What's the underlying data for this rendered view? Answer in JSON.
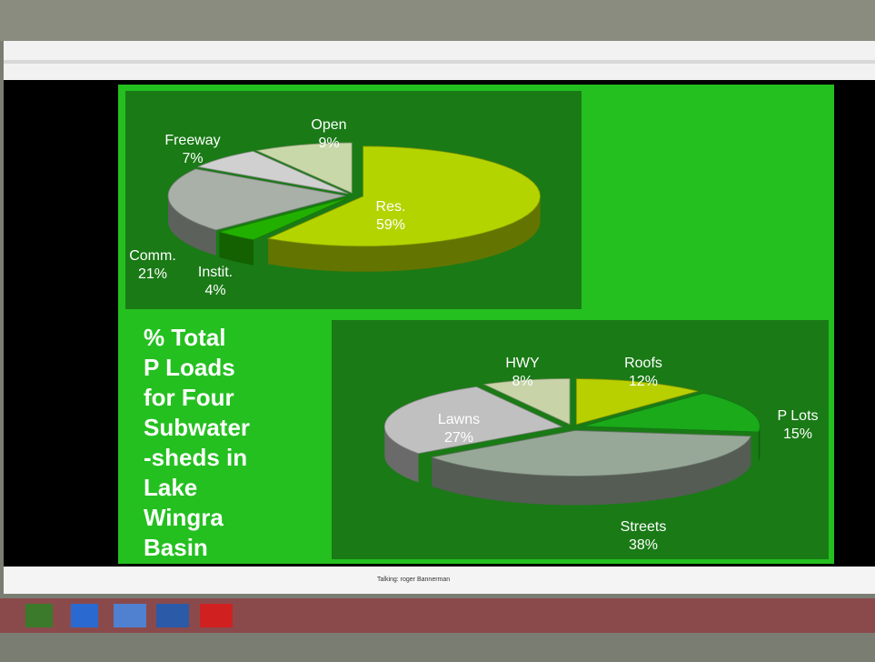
{
  "slide_title_lines": [
    "% Total",
    "P Loads",
    "for Four",
    "Subwater",
    "-sheds in",
    "Lake",
    "Wingra",
    "Basin"
  ],
  "status_text": "Talking: roger Bannerman",
  "chart_data": [
    {
      "type": "pie",
      "categories": [
        "Res.",
        "Instit.",
        "Comm.",
        "Freeway",
        "Open"
      ],
      "values": [
        59,
        4,
        21,
        7,
        9
      ],
      "value_labels": [
        "59%",
        "4%",
        "21%",
        "7%",
        "9%"
      ],
      "colors": [
        "#b4d400",
        "#22b000",
        "#a8b0a8",
        "#d0d0d0",
        "#c8d8a8"
      ]
    },
    {
      "type": "pie",
      "categories": [
        "Roofs",
        "P Lots",
        "Streets",
        "Lawns",
        "HWY"
      ],
      "values": [
        12,
        15,
        38,
        27,
        8
      ],
      "value_labels": [
        "12%",
        "15%",
        "38%",
        "27%",
        "8%"
      ],
      "colors": [
        "#b8d000",
        "#1aaa1a",
        "#98a898",
        "#c0c0c0",
        "#c8d4a8"
      ]
    }
  ]
}
